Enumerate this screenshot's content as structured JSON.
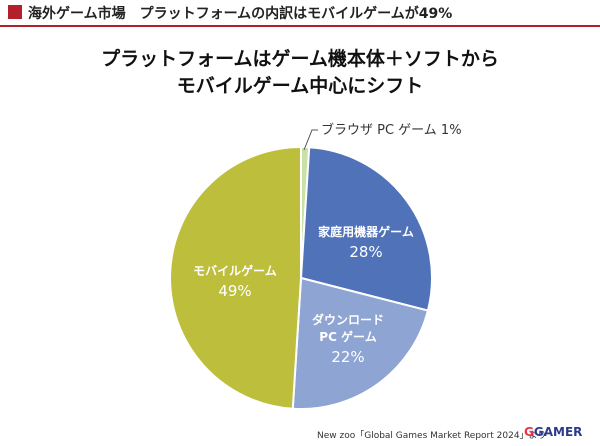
{
  "header": {
    "title": "海外ゲーム市場　プラットフォームの内訳はモバイルゲームが49%"
  },
  "chart_data": {
    "type": "pie",
    "title_lines": [
      "プラットフォームはゲーム機本体＋ソフトから",
      "モバイルゲーム中心にシフト"
    ],
    "slices": [
      {
        "label": "ブラウザ PC ゲーム",
        "value_label": "1%",
        "value": 1,
        "color": "#c9e0a6"
      },
      {
        "label": "家庭用機器ゲーム",
        "value_label": "28%",
        "value": 28,
        "color": "#4f72b8"
      },
      {
        "label": "ダウンロード PC ゲーム",
        "label_lines": [
          "ダウンロード",
          "PC ゲーム"
        ],
        "value_label": "22%",
        "value": 22,
        "color": "#8ea4d2"
      },
      {
        "label": "モバイルゲーム",
        "value_label": "49%",
        "value": 49,
        "color": "#bdbf3c"
      }
    ],
    "callout_text": "ブラウザ PC ゲーム 1%"
  },
  "footer": {
    "source": "New zoo「Global Games Market Report 2024」より",
    "logo_g": "G",
    "logo_rest": "GAMER"
  }
}
